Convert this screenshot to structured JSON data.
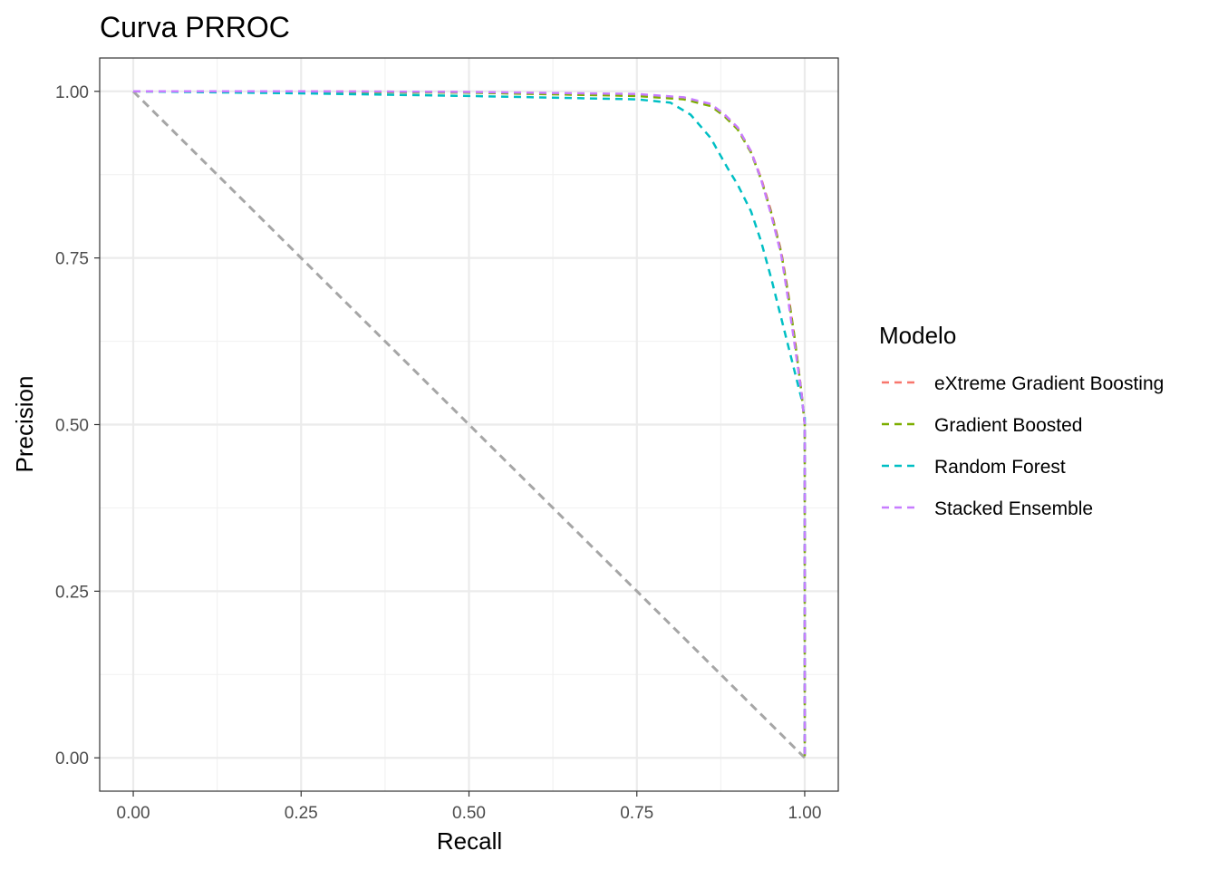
{
  "chart_data": {
    "type": "line",
    "title": "Curva PRROC",
    "xlabel": "Recall",
    "ylabel": "Precision",
    "xlim": [
      -0.05,
      1.05
    ],
    "ylim": [
      -0.05,
      1.05
    ],
    "x_ticks": [
      "0.00",
      "0.25",
      "0.50",
      "0.75",
      "1.00"
    ],
    "y_ticks": [
      "0.00",
      "0.25",
      "0.50",
      "0.75",
      "1.00"
    ],
    "grid": true,
    "line_style": "dashed",
    "legend": {
      "title": "Modelo",
      "position": "right"
    },
    "series": [
      {
        "name": "eXtreme Gradient Boosting",
        "color": "#F8766D",
        "points": [
          [
            0,
            1.0
          ],
          [
            0.25,
            1.0
          ],
          [
            0.5,
            0.999
          ],
          [
            0.75,
            0.995
          ],
          [
            0.82,
            0.99
          ],
          [
            0.86,
            0.98
          ],
          [
            0.88,
            0.965
          ],
          [
            0.9,
            0.945
          ],
          [
            0.92,
            0.91
          ],
          [
            0.935,
            0.87
          ],
          [
            0.95,
            0.82
          ],
          [
            0.965,
            0.76
          ],
          [
            0.975,
            0.7
          ],
          [
            0.985,
            0.63
          ],
          [
            0.995,
            0.55
          ],
          [
            1.0,
            0.5
          ],
          [
            1.0,
            0.0
          ]
        ]
      },
      {
        "name": "Gradient Boosted",
        "color": "#7CAE00",
        "points": [
          [
            0,
            1.0
          ],
          [
            0.25,
            0.999
          ],
          [
            0.5,
            0.998
          ],
          [
            0.75,
            0.993
          ],
          [
            0.82,
            0.988
          ],
          [
            0.86,
            0.978
          ],
          [
            0.88,
            0.963
          ],
          [
            0.9,
            0.943
          ],
          [
            0.92,
            0.908
          ],
          [
            0.935,
            0.868
          ],
          [
            0.95,
            0.818
          ],
          [
            0.965,
            0.758
          ],
          [
            0.975,
            0.698
          ],
          [
            0.985,
            0.63
          ],
          [
            0.995,
            0.55
          ],
          [
            1.0,
            0.5
          ],
          [
            1.0,
            0.0
          ]
        ]
      },
      {
        "name": "Random Forest",
        "color": "#00BFC4",
        "points": [
          [
            0,
            1.0
          ],
          [
            0.25,
            0.997
          ],
          [
            0.5,
            0.993
          ],
          [
            0.75,
            0.988
          ],
          [
            0.8,
            0.983
          ],
          [
            0.83,
            0.965
          ],
          [
            0.86,
            0.93
          ],
          [
            0.885,
            0.885
          ],
          [
            0.9,
            0.86
          ],
          [
            0.92,
            0.82
          ],
          [
            0.935,
            0.775
          ],
          [
            0.95,
            0.72
          ],
          [
            0.965,
            0.66
          ],
          [
            0.98,
            0.6
          ],
          [
            0.995,
            0.54
          ],
          [
            1.0,
            0.51
          ],
          [
            1.0,
            0.0
          ]
        ]
      },
      {
        "name": "Stacked Ensemble",
        "color": "#C77CFF",
        "points": [
          [
            0,
            1.0
          ],
          [
            0.25,
            1.0
          ],
          [
            0.5,
            0.999
          ],
          [
            0.75,
            0.996
          ],
          [
            0.82,
            0.991
          ],
          [
            0.86,
            0.981
          ],
          [
            0.88,
            0.966
          ],
          [
            0.9,
            0.946
          ],
          [
            0.92,
            0.91
          ],
          [
            0.935,
            0.868
          ],
          [
            0.95,
            0.815
          ],
          [
            0.965,
            0.755
          ],
          [
            0.975,
            0.69
          ],
          [
            0.985,
            0.62
          ],
          [
            0.995,
            0.55
          ],
          [
            1.0,
            0.5
          ],
          [
            1.0,
            0.0
          ]
        ]
      }
    ],
    "reference_line": {
      "color": "#A6A6A6",
      "points": [
        [
          0,
          1.0
        ],
        [
          1.0,
          0.0
        ]
      ]
    }
  }
}
